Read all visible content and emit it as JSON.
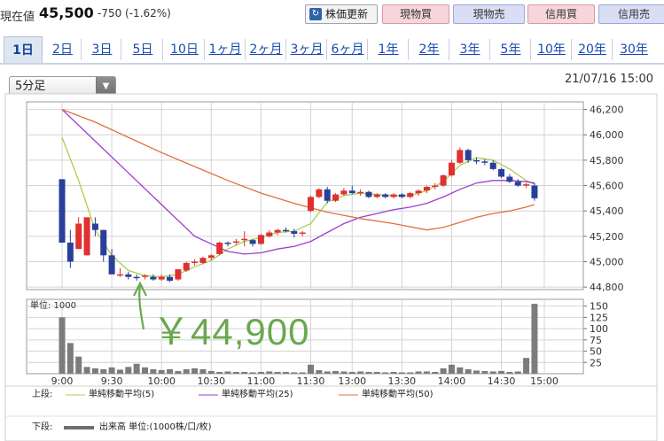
{
  "header": {
    "price_label": "現在値",
    "price_value": "45,500",
    "price_change": "-750 (-1.62%)",
    "refresh_label": "株価更新",
    "spot_buy_label": "現物買",
    "spot_sell_label": "現物売",
    "margin_buy_label": "信用買",
    "margin_sell_label": "信用売"
  },
  "tabs": [
    "1日",
    "2日",
    "3日",
    "5日",
    "10日",
    "1ヶ月",
    "2ヶ月",
    "3ヶ月",
    "6ヶ月",
    "1年",
    "2年",
    "3年",
    "5年",
    "10年",
    "20年",
    "30年"
  ],
  "active_tab": "1日",
  "interval_select": {
    "value": "5分足"
  },
  "datetime": "21/07/16 15:00",
  "annotation": "￥44,900",
  "colors": {
    "up": "#e03030",
    "down": "#2a3f9a",
    "ma5": "#a8cf4e",
    "ma25": "#9b3fd0",
    "ma50": "#e07040",
    "volume": "#7c7c7c",
    "annotation": "#6aa84f"
  },
  "legend": {
    "upper_label": "上段:",
    "ma5_label": "単純移動平均(5)",
    "ma25_label": "単純移動平均(25)",
    "ma50_label": "単純移動平均(50)",
    "lower_label": "下段:",
    "volume_label": "出来高 単位:(1000株/口/枚)"
  },
  "chart_data": [
    {
      "type": "candlestick",
      "title": "",
      "xlabel": "",
      "ylabel": "",
      "x_ticks": [
        "9:00",
        "9:30",
        "10:00",
        "10:30",
        "11:00",
        "11:30",
        "13:00",
        "13:30",
        "14:00",
        "14:30",
        "15:00"
      ],
      "y_ticks": [
        46200,
        46000,
        45800,
        45600,
        45400,
        45200,
        45000,
        44800
      ],
      "ylim": [
        44780,
        46260
      ],
      "grid": true,
      "series": [
        {
          "name": "price_ohlc",
          "candles": [
            [
              45650,
              45650,
              45150,
              45150
            ],
            [
              45150,
              45250,
              44950,
              45000
            ],
            [
              45100,
              45350,
              45100,
              45300
            ],
            [
              45050,
              45350,
              45050,
              45350
            ],
            [
              45300,
              45350,
              45200,
              45250
            ],
            [
              45250,
              45250,
              45000,
              45050
            ],
            [
              45050,
              45100,
              44900,
              44900
            ],
            [
              44900,
              44950,
              44880,
              44900
            ],
            [
              44900,
              44920,
              44860,
              44880
            ],
            [
              44880,
              44900,
              44850,
              44870
            ],
            [
              44880,
              44900,
              44860,
              44890
            ],
            [
              44880,
              44900,
              44850,
              44860
            ],
            [
              44860,
              44900,
              44850,
              44880
            ],
            [
              44880,
              44900,
              44840,
              44850
            ],
            [
              44860,
              44940,
              44850,
              44940
            ],
            [
              44930,
              45000,
              44920,
              44990
            ],
            [
              44990,
              45020,
              44970,
              45000
            ],
            [
              44990,
              45040,
              44980,
              45030
            ],
            [
              45030,
              45060,
              45010,
              45050
            ],
            [
              45060,
              45160,
              45050,
              45150
            ],
            [
              45150,
              45160,
              45120,
              45140
            ],
            [
              45150,
              45180,
              45130,
              45160
            ],
            [
              45170,
              45240,
              45120,
              45180
            ],
            [
              45170,
              45180,
              45120,
              45140
            ],
            [
              45140,
              45220,
              45130,
              45210
            ],
            [
              45200,
              45250,
              45190,
              45230
            ],
            [
              45230,
              45260,
              45210,
              45250
            ],
            [
              45250,
              45270,
              45230,
              45240
            ],
            [
              45240,
              45260,
              45190,
              45220
            ],
            [
              45220,
              45240,
              45200,
              45230
            ],
            [
              45400,
              45520,
              45390,
              45510
            ],
            [
              45510,
              45580,
              45500,
              45570
            ],
            [
              45570,
              45590,
              45460,
              45480
            ],
            [
              45480,
              45540,
              45470,
              45530
            ],
            [
              45530,
              45580,
              45520,
              45560
            ],
            [
              45560,
              45600,
              45530,
              45540
            ],
            [
              45540,
              45570,
              45520,
              45550
            ],
            [
              45550,
              45560,
              45500,
              45510
            ],
            [
              45510,
              45540,
              45500,
              45530
            ],
            [
              45530,
              45540,
              45500,
              45510
            ],
            [
              45510,
              45540,
              45500,
              45530
            ],
            [
              45530,
              45540,
              45500,
              45510
            ],
            [
              45510,
              45550,
              45500,
              45540
            ],
            [
              45540,
              45570,
              45520,
              45560
            ],
            [
              45560,
              45600,
              45540,
              45590
            ],
            [
              45590,
              45620,
              45570,
              45600
            ],
            [
              45600,
              45690,
              45590,
              45680
            ],
            [
              45680,
              45800,
              45670,
              45780
            ],
            [
              45780,
              45900,
              45770,
              45880
            ],
            [
              45880,
              45890,
              45780,
              45800
            ],
            [
              45800,
              45820,
              45770,
              45790
            ],
            [
              45790,
              45810,
              45760,
              45780
            ],
            [
              45780,
              45800,
              45720,
              45730
            ],
            [
              45730,
              45740,
              45660,
              45670
            ],
            [
              45670,
              45690,
              45620,
              45630
            ],
            [
              45630,
              45650,
              45590,
              45600
            ],
            [
              45600,
              45620,
              45580,
              45610
            ],
            [
              45600,
              45620,
              45480,
              45500
            ]
          ]
        },
        {
          "name": "ma5",
          "points": [
            [
              0,
              45980
            ],
            [
              2,
              45640
            ],
            [
              4,
              45250
            ],
            [
              6,
              45050
            ],
            [
              8,
              44930
            ],
            [
              10,
              44890
            ],
            [
              12,
              44880
            ],
            [
              14,
              44900
            ],
            [
              16,
              44960
            ],
            [
              18,
              45010
            ],
            [
              20,
              45100
            ],
            [
              22,
              45160
            ],
            [
              24,
              45190
            ],
            [
              26,
              45230
            ],
            [
              28,
              45240
            ],
            [
              30,
              45300
            ],
            [
              32,
              45470
            ],
            [
              34,
              45520
            ],
            [
              36,
              45540
            ],
            [
              38,
              45530
            ],
            [
              40,
              45520
            ],
            [
              42,
              45520
            ],
            [
              44,
              45560
            ],
            [
              46,
              45630
            ],
            [
              48,
              45760
            ],
            [
              50,
              45820
            ],
            [
              52,
              45800
            ],
            [
              54,
              45730
            ],
            [
              56,
              45640
            ],
            [
              57,
              45610
            ]
          ]
        },
        {
          "name": "ma25",
          "points": [
            [
              0,
              46200
            ],
            [
              4,
              45950
            ],
            [
              8,
              45700
            ],
            [
              12,
              45450
            ],
            [
              16,
              45200
            ],
            [
              20,
              45080
            ],
            [
              22,
              45060
            ],
            [
              24,
              45070
            ],
            [
              26,
              45100
            ],
            [
              28,
              45120
            ],
            [
              30,
              45160
            ],
            [
              32,
              45230
            ],
            [
              34,
              45300
            ],
            [
              36,
              45350
            ],
            [
              38,
              45380
            ],
            [
              40,
              45410
            ],
            [
              42,
              45430
            ],
            [
              44,
              45460
            ],
            [
              46,
              45510
            ],
            [
              48,
              45570
            ],
            [
              50,
              45620
            ],
            [
              52,
              45640
            ],
            [
              54,
              45640
            ],
            [
              56,
              45630
            ],
            [
              57,
              45620
            ]
          ]
        },
        {
          "name": "ma50",
          "points": [
            [
              0,
              46200
            ],
            [
              4,
              46100
            ],
            [
              8,
              45980
            ],
            [
              12,
              45860
            ],
            [
              16,
              45750
            ],
            [
              20,
              45640
            ],
            [
              24,
              45540
            ],
            [
              28,
              45460
            ],
            [
              32,
              45390
            ],
            [
              36,
              45340
            ],
            [
              40,
              45300
            ],
            [
              44,
              45250
            ],
            [
              46,
              45270
            ],
            [
              48,
              45310
            ],
            [
              50,
              45350
            ],
            [
              52,
              45380
            ],
            [
              54,
              45400
            ],
            [
              56,
              45430
            ],
            [
              57,
              45450
            ]
          ]
        }
      ]
    },
    {
      "type": "bar",
      "title": "単位: 1000",
      "y_ticks": [
        150,
        125,
        100,
        75,
        50,
        25
      ],
      "ylim": [
        0,
        165
      ],
      "grid": true,
      "values": [
        125,
        68,
        38,
        15,
        12,
        10,
        14,
        9,
        15,
        22,
        14,
        10,
        8,
        10,
        6,
        10,
        12,
        10,
        6,
        4,
        5,
        4,
        4,
        3,
        4,
        5,
        4,
        4,
        3,
        3,
        20,
        8,
        5,
        6,
        5,
        4,
        5,
        4,
        4,
        3,
        4,
        3,
        3,
        5,
        5,
        4,
        12,
        20,
        14,
        10,
        7,
        6,
        5,
        6,
        4,
        5,
        35,
        155
      ]
    }
  ]
}
